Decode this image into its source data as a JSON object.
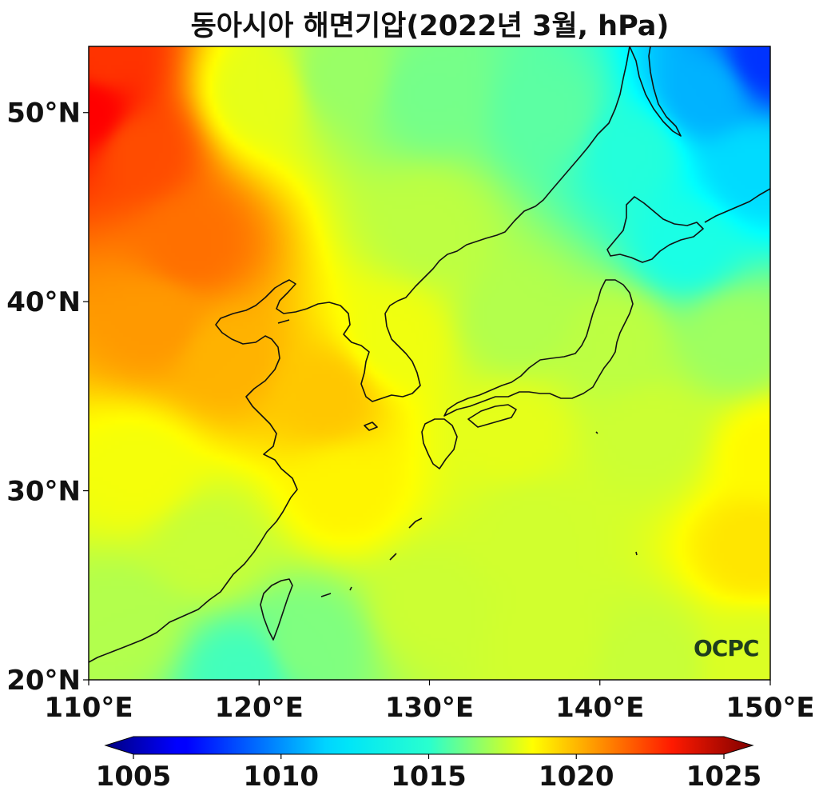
{
  "chart_data": {
    "type": "heatmap",
    "title": "동아시아 해면기압(2022년 3월, hPa)",
    "x_axis": {
      "range": [
        110,
        150
      ],
      "ticks": [
        110,
        120,
        130,
        140,
        150
      ],
      "tick_labels": [
        "110°E",
        "120°E",
        "130°E",
        "140°E",
        "150°E"
      ]
    },
    "y_axis": {
      "range": [
        20,
        53.5
      ],
      "ticks": [
        20,
        30,
        40,
        50
      ],
      "tick_labels": [
        "20°N",
        "30°N",
        "40°N",
        "50°N"
      ]
    },
    "colorbar": {
      "range": [
        1005,
        1025
      ],
      "ticks": [
        1005,
        1010,
        1015,
        1020,
        1025
      ],
      "tick_labels": [
        "1005",
        "1010",
        "1015",
        "1020",
        "1025"
      ],
      "colormap": "jet",
      "extend": "both"
    },
    "pressure_field_hpa": [
      {
        "lon": 110,
        "lat": 50,
        "value": 1022.5
      },
      {
        "lon": 111,
        "lat": 53,
        "value": 1021.5
      },
      {
        "lon": 113,
        "lat": 48,
        "value": 1021
      },
      {
        "lon": 116,
        "lat": 43,
        "value": 1020.3
      },
      {
        "lon": 114,
        "lat": 39,
        "value": 1019.5
      },
      {
        "lon": 118,
        "lat": 37,
        "value": 1019
      },
      {
        "lon": 124,
        "lat": 35,
        "value": 1018.6
      },
      {
        "lon": 120,
        "lat": 51,
        "value": 1017
      },
      {
        "lon": 125,
        "lat": 52,
        "value": 1015.5
      },
      {
        "lon": 130,
        "lat": 51,
        "value": 1014.8
      },
      {
        "lon": 137,
        "lat": 50,
        "value": 1014.3
      },
      {
        "lon": 142,
        "lat": 48,
        "value": 1013.2
      },
      {
        "lon": 146,
        "lat": 51,
        "value": 1011
      },
      {
        "lon": 150,
        "lat": 53,
        "value": 1008.5
      },
      {
        "lon": 149,
        "lat": 47,
        "value": 1011.8
      },
      {
        "lon": 145,
        "lat": 43,
        "value": 1013
      },
      {
        "lon": 130,
        "lat": 44,
        "value": 1016.2
      },
      {
        "lon": 128,
        "lat": 38,
        "value": 1017.2
      },
      {
        "lon": 135,
        "lat": 39,
        "value": 1016
      },
      {
        "lon": 141,
        "lat": 38,
        "value": 1016.2
      },
      {
        "lon": 148,
        "lat": 38,
        "value": 1015.6
      },
      {
        "lon": 135,
        "lat": 33,
        "value": 1017
      },
      {
        "lon": 143,
        "lat": 33,
        "value": 1016.5
      },
      {
        "lon": 150,
        "lat": 32,
        "value": 1017.6
      },
      {
        "lon": 149,
        "lat": 27,
        "value": 1018
      },
      {
        "lon": 125,
        "lat": 30,
        "value": 1017.7
      },
      {
        "lon": 113,
        "lat": 31,
        "value": 1017.3
      },
      {
        "lon": 117,
        "lat": 27,
        "value": 1016.4
      },
      {
        "lon": 112,
        "lat": 23,
        "value": 1016
      },
      {
        "lon": 119,
        "lat": 20.3,
        "value": 1013.8
      },
      {
        "lon": 123,
        "lat": 22,
        "value": 1015
      },
      {
        "lon": 130,
        "lat": 24,
        "value": 1016.5
      },
      {
        "lon": 137,
        "lat": 22,
        "value": 1016.6
      },
      {
        "lon": 143,
        "lat": 21,
        "value": 1016.4
      },
      {
        "lon": 149,
        "lat": 21,
        "value": 1016.8
      },
      {
        "lon": 136,
        "lat": 28,
        "value": 1016.6
      }
    ]
  },
  "watermark": {
    "text": "OCPC"
  }
}
